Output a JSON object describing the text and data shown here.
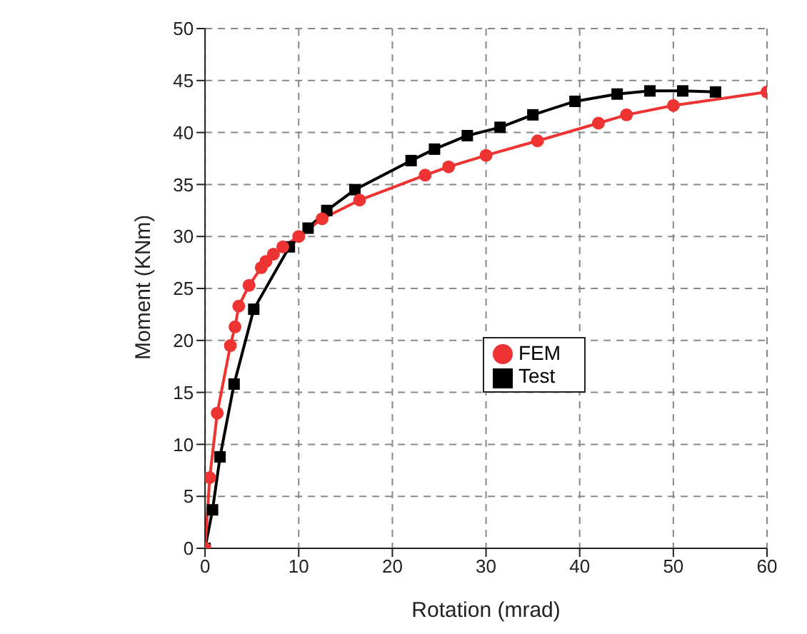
{
  "chart_data": {
    "type": "line",
    "xlabel": "Rotation (mrad)",
    "ylabel": "Moment (KNm)",
    "xlim": [
      0,
      60
    ],
    "xticks": [
      0,
      10,
      20,
      30,
      40,
      50,
      60
    ],
    "ylim": [
      0,
      50
    ],
    "yticks": [
      0,
      5,
      10,
      15,
      20,
      25,
      30,
      35,
      40,
      45,
      50
    ],
    "grid": true,
    "legend": "right",
    "series": [
      {
        "name": "Test",
        "color": "#000000",
        "marker": "square",
        "x": [
          0,
          0.8,
          1.6,
          3.1,
          5.2,
          9,
          11,
          13,
          16,
          22,
          24.5,
          28,
          31.5,
          35,
          39.5,
          44,
          47.5,
          51,
          54.5
        ],
        "values": [
          0,
          3.7,
          8.8,
          15.8,
          23,
          29,
          30.8,
          32.5,
          34.5,
          37.3,
          38.4,
          39.7,
          40.5,
          41.7,
          43,
          43.7,
          44,
          44,
          43.9
        ]
      },
      {
        "name": "FEM",
        "color": "#ee3333",
        "marker": "circle",
        "x": [
          0,
          0.5,
          1.3,
          2.7,
          3.2,
          3.6,
          4.7,
          6,
          6.5,
          7.3,
          8.3,
          10,
          12.5,
          16.5,
          23.5,
          26,
          30,
          35.5,
          42,
          45,
          50,
          60
        ],
        "values": [
          0,
          6.8,
          13,
          19.5,
          21.3,
          23.3,
          25.3,
          27,
          27.6,
          28.3,
          29,
          30,
          31.7,
          33.5,
          35.9,
          36.7,
          37.8,
          39.2,
          40.9,
          41.7,
          42.6,
          43.9
        ]
      }
    ]
  }
}
